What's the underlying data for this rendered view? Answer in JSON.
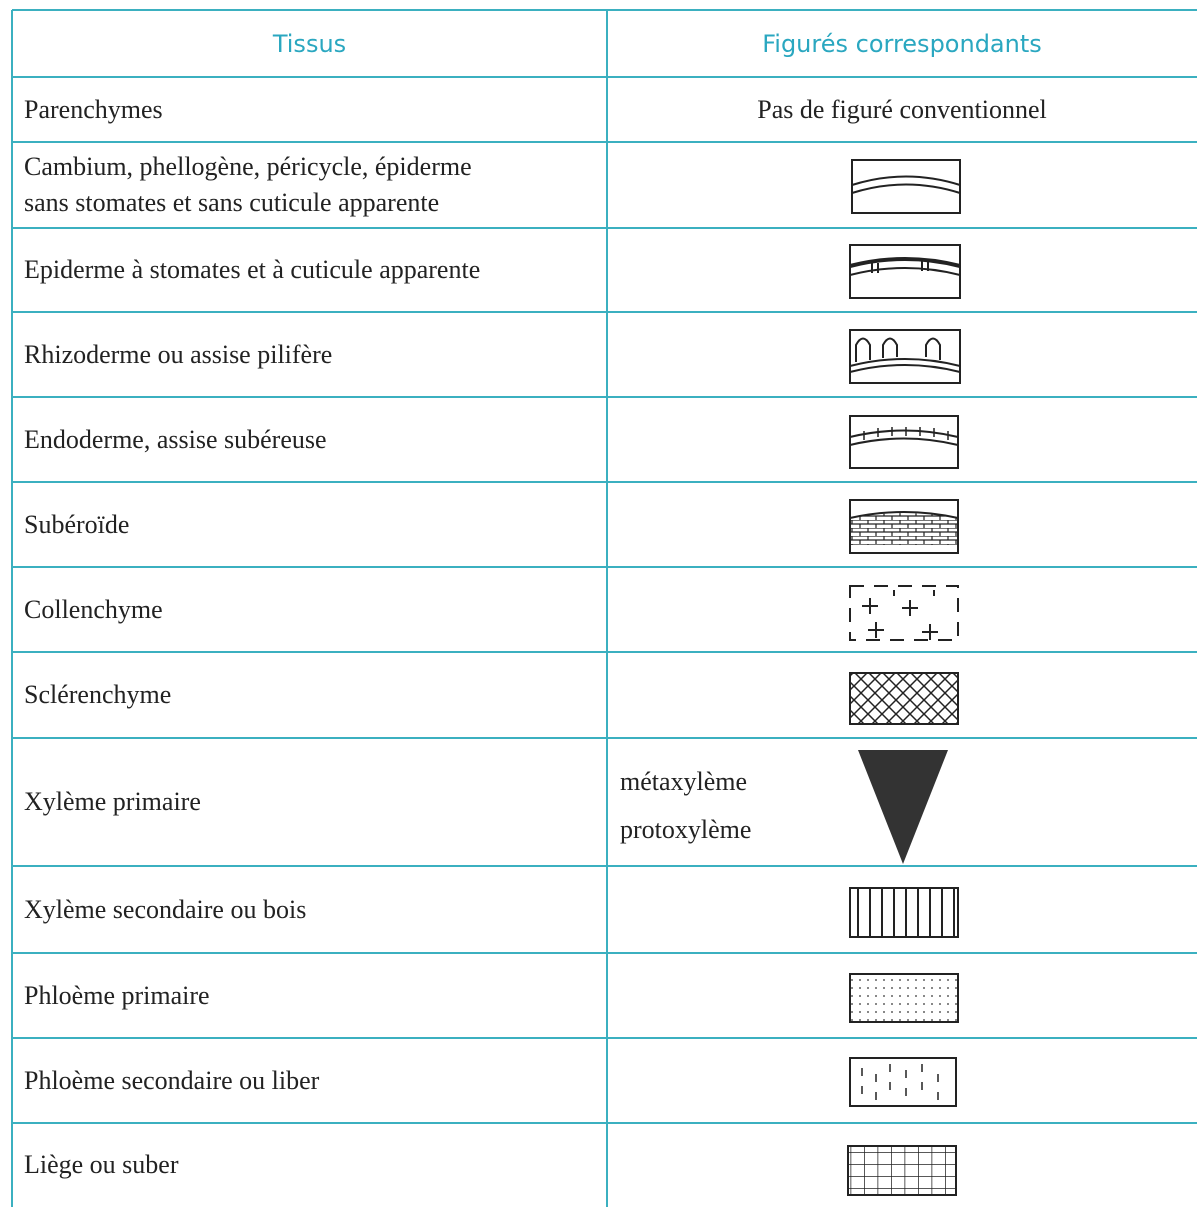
{
  "table": {
    "header": [
      "Tissus",
      "Figurés correspondants"
    ],
    "rows": [
      {
        "tissue": "Parenchymes",
        "figure": "Pas de figuré conventionnel"
      },
      {
        "tissue": "Cambium, phellogène, péricycle, épiderme sans stomates et sans cuticule apparente"
      },
      {
        "tissue": "Epiderme à stomates et à cuticule apparente"
      },
      {
        "tissue": "Rhizoderme ou assise pilifère"
      },
      {
        "tissue": "Endoderme, assise subéreuse"
      },
      {
        "tissue": "Subéroïde"
      },
      {
        "tissue": "Collenchyme"
      },
      {
        "tissue": "Sclérenchyme"
      },
      {
        "tissue": "Xylème primaire",
        "labels": [
          "métaxylème",
          "protoxylème"
        ]
      },
      {
        "tissue": "Xylème secondaire ou bois"
      },
      {
        "tissue": "Phloème primaire"
      },
      {
        "tissue": "Phloème secondaire ou liber"
      },
      {
        "tissue": "Liège ou suber"
      }
    ]
  }
}
